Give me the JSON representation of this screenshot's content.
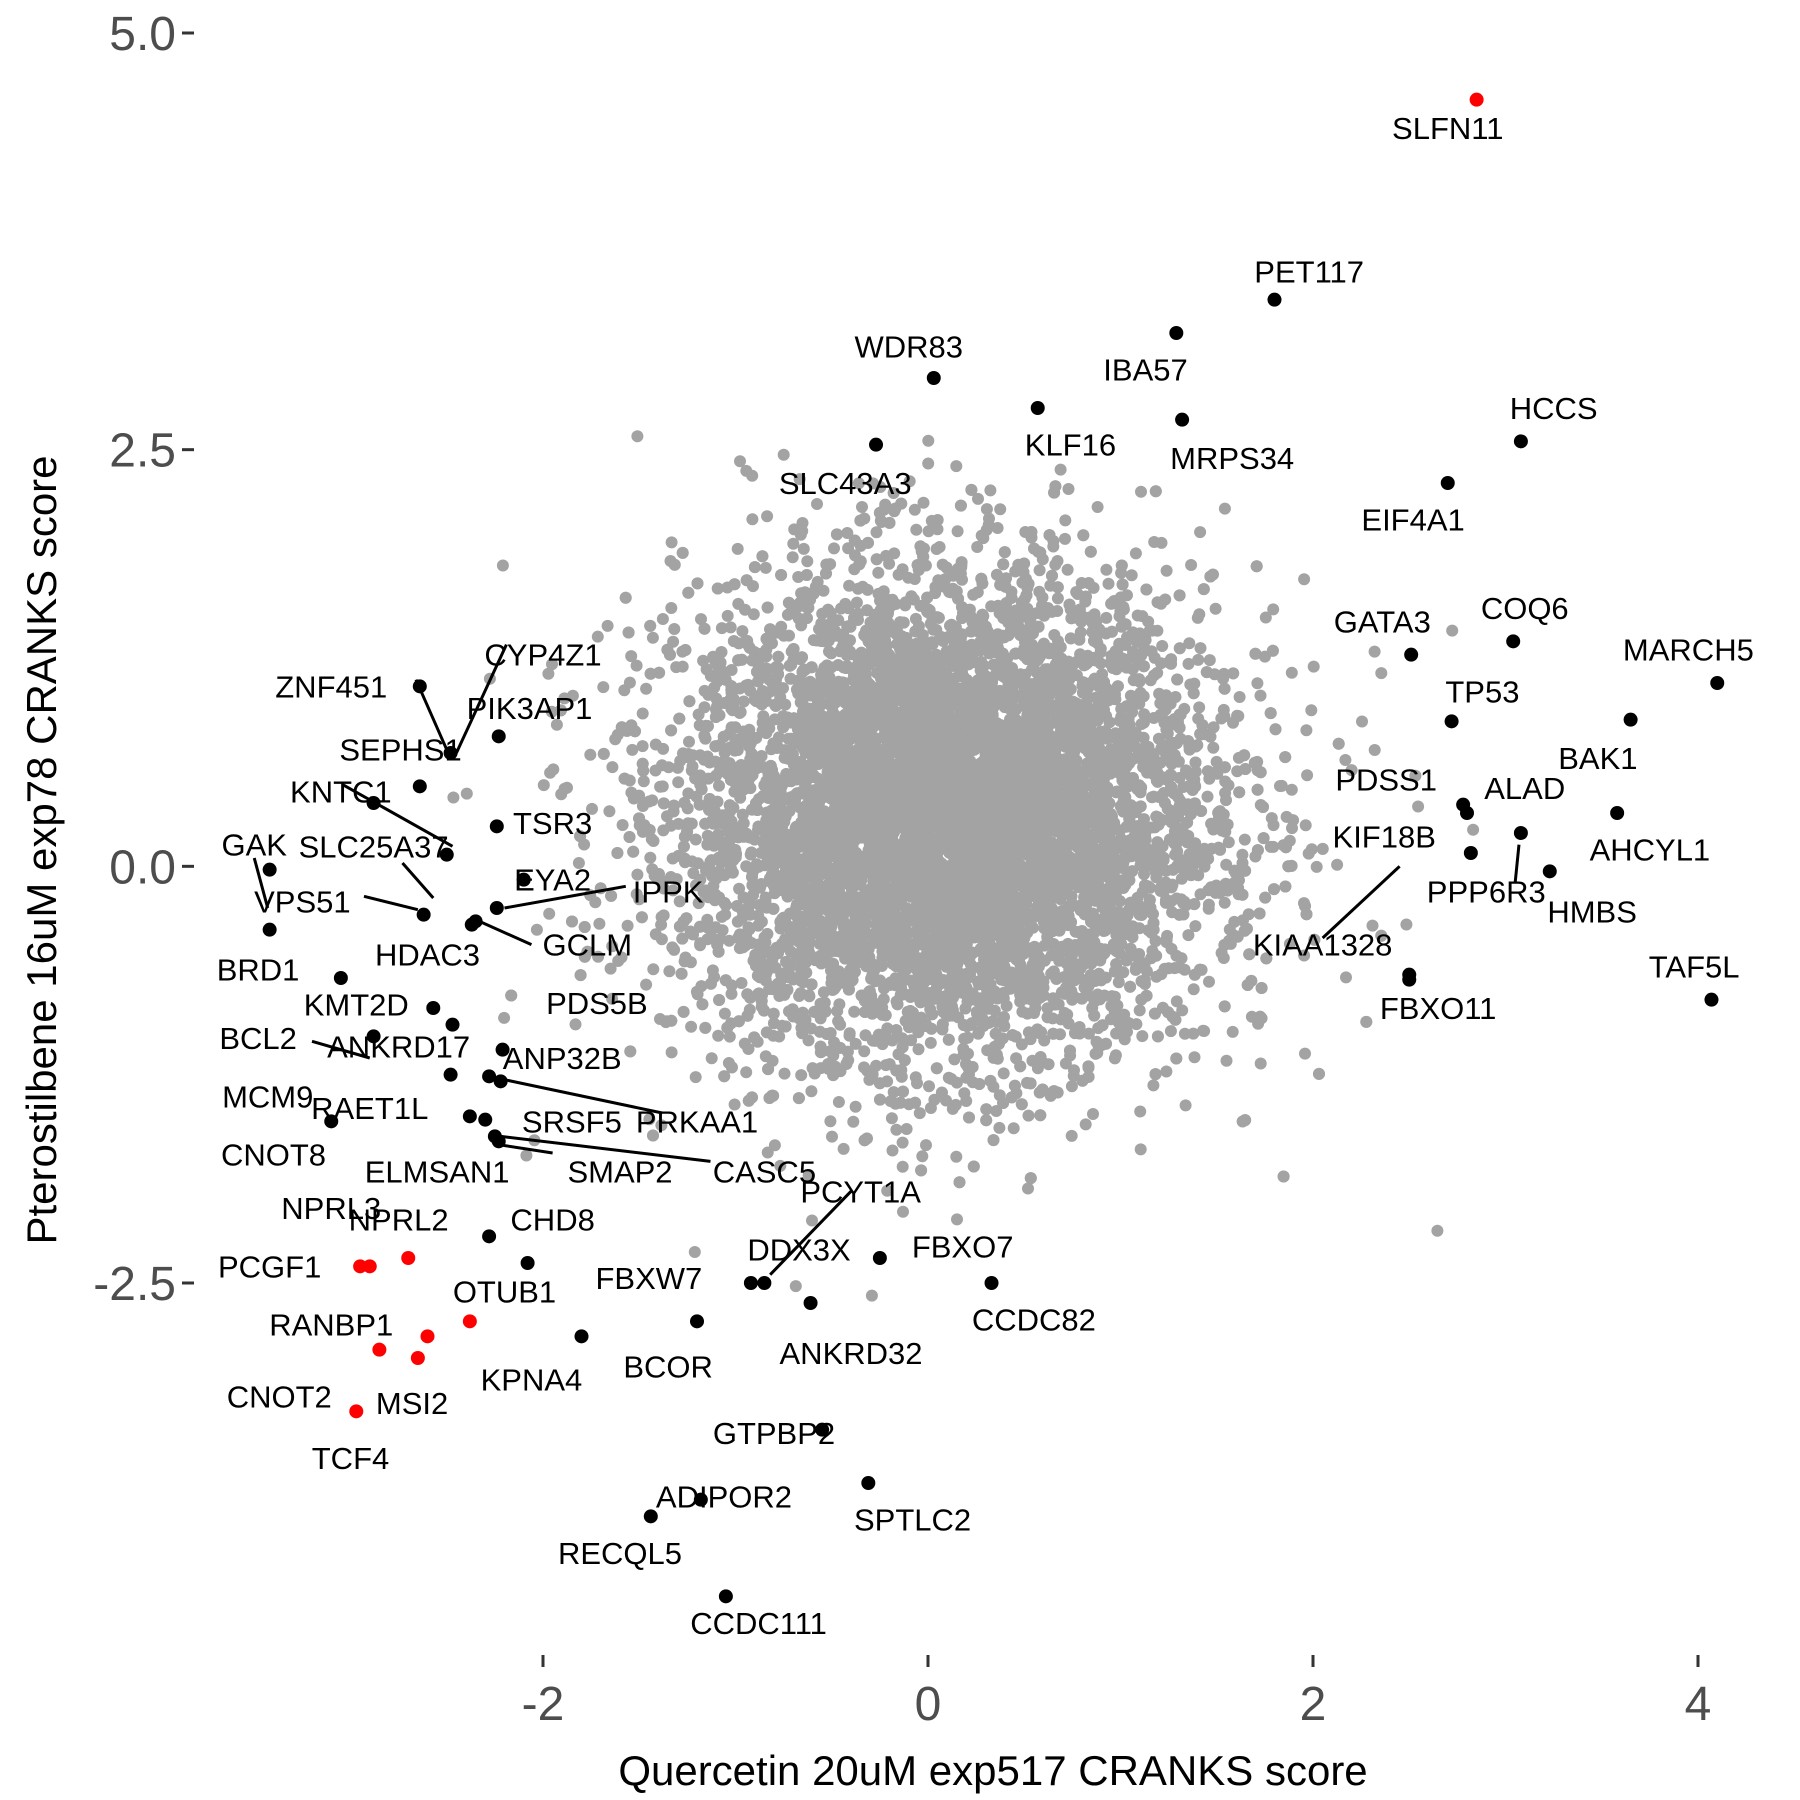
{
  "chart_data": {
    "type": "scatter",
    "xlabel": "Quercetin 20uM exp517 CRANKS score",
    "ylabel": "Pterostilbene 16uM exp78 CRANKS score",
    "xlim": [
      -3.6,
      4.3
    ],
    "ylim": [
      -4.55,
      5.25
    ],
    "xticks": [
      {
        "value": -2,
        "label": "-2"
      },
      {
        "value": 0,
        "label": "0"
      },
      {
        "value": 2,
        "label": "2"
      },
      {
        "value": 4,
        "label": "4"
      }
    ],
    "yticks": [
      {
        "value": 5.0,
        "label": "5.0"
      },
      {
        "value": 2.5,
        "label": "2.5"
      },
      {
        "value": 0.0,
        "label": "0.0"
      },
      {
        "value": -2.5,
        "label": "-2.5"
      }
    ],
    "grid": false,
    "legend": "none",
    "colors": {
      "background_points": "#a3a3a3",
      "highlight": "#000000",
      "top_hits": "#ff0000"
    },
    "background_cloud": {
      "approx_center": [
        0.1,
        0.3
      ],
      "approx_sd": [
        0.65,
        0.65
      ],
      "note_color": "gray"
    },
    "labeled_points": [
      {
        "gene": "SLFN11",
        "x": 2.85,
        "y": 4.6,
        "color": "red",
        "lx": 2.7,
        "ly": 4.43
      },
      {
        "gene": "PET117",
        "x": 1.8,
        "y": 3.4,
        "color": "black",
        "lx": 1.98,
        "ly": 3.57
      },
      {
        "gene": "WDR83",
        "x": 0.03,
        "y": 2.93,
        "color": "black",
        "lx": -0.1,
        "ly": 3.12
      },
      {
        "gene": "IBA57",
        "x": 1.29,
        "y": 3.2,
        "color": "black",
        "lx": 1.13,
        "ly": 2.98
      },
      {
        "gene": "KLF16",
        "x": 0.57,
        "y": 2.75,
        "color": "black",
        "lx": 0.74,
        "ly": 2.53
      },
      {
        "gene": "MRPS34",
        "x": 1.32,
        "y": 2.68,
        "color": "black",
        "lx": 1.58,
        "ly": 2.45
      },
      {
        "gene": "SLC43A3",
        "x": -0.27,
        "y": 2.53,
        "color": "black",
        "lx": -0.43,
        "ly": 2.3
      },
      {
        "gene": "HCCS",
        "x": 3.08,
        "y": 2.55,
        "color": "black",
        "lx": 3.25,
        "ly": 2.75
      },
      {
        "gene": "EIF4A1",
        "x": 2.7,
        "y": 2.3,
        "color": "black",
        "lx": 2.52,
        "ly": 2.08
      },
      {
        "gene": "GATA3",
        "x": 2.51,
        "y": 1.27,
        "color": "black",
        "lx": 2.36,
        "ly": 1.47
      },
      {
        "gene": "COQ6",
        "x": 3.04,
        "y": 1.35,
        "color": "black",
        "lx": 3.1,
        "ly": 1.55
      },
      {
        "gene": "MARCH5",
        "x": 4.1,
        "y": 1.1,
        "color": "black",
        "lx": 3.95,
        "ly": 1.3
      },
      {
        "gene": "TP53",
        "x": 2.72,
        "y": 0.87,
        "color": "black",
        "lx": 2.88,
        "ly": 1.05
      },
      {
        "gene": "BAK1",
        "x": 3.65,
        "y": 0.88,
        "color": "black",
        "lx": 3.48,
        "ly": 0.65
      },
      {
        "gene": "PDSS1",
        "x": 2.78,
        "y": 0.37,
        "color": "black",
        "lx": 2.38,
        "ly": 0.52
      },
      {
        "gene": "ALAD",
        "x": 2.8,
        "y": 0.32,
        "color": "black",
        "lx": 3.1,
        "ly": 0.47
      },
      {
        "gene": "KIF18B",
        "x": 2.82,
        "y": 0.08,
        "color": "black",
        "lx": 2.37,
        "ly": 0.18
      },
      {
        "gene": "AHCYL1",
        "x": 3.58,
        "y": 0.32,
        "color": "black",
        "lx": 3.75,
        "ly": 0.1
      },
      {
        "gene": "PPP6R3",
        "x": 3.08,
        "y": 0.2,
        "color": "black",
        "lx": 2.9,
        "ly": -0.15,
        "line": [
          3.07,
          0.13,
          3.05,
          -0.1
        ]
      },
      {
        "gene": "HMBS",
        "x": 3.23,
        "y": -0.03,
        "color": "black",
        "lx": 3.45,
        "ly": -0.27
      },
      {
        "gene": "KIAA1328",
        "x": 2.5,
        "y": -0.68,
        "color": "black",
        "lx": 2.05,
        "ly": -0.47,
        "line": [
          2.45,
          0.0,
          2.05,
          -0.43
        ]
      },
      {
        "gene": "FBXO11",
        "x": 2.5,
        "y": -0.65,
        "color": "black",
        "lx": 2.65,
        "ly": -0.85
      },
      {
        "gene": "TAF5L",
        "x": 4.07,
        "y": -0.8,
        "color": "black",
        "lx": 3.98,
        "ly": -0.6
      },
      {
        "gene": "CYP4Z1",
        "x": -2.48,
        "y": 0.68,
        "color": "black",
        "lx": -2.0,
        "ly": 1.27,
        "line": [
          -2.45,
          0.68,
          -2.19,
          1.33
        ]
      },
      {
        "gene": "ZNF451",
        "x": -2.64,
        "y": 1.08,
        "color": "black",
        "lx": -3.1,
        "ly": 1.08,
        "line": [
          -2.66,
          1.12,
          -2.5,
          0.7
        ]
      },
      {
        "gene": "PIK3AP1",
        "x": -2.23,
        "y": 0.78,
        "color": "black",
        "lx": -2.07,
        "ly": 0.95
      },
      {
        "gene": "SEPHS1",
        "x": -2.64,
        "y": 0.48,
        "color": "black",
        "lx": -2.74,
        "ly": 0.7
      },
      {
        "gene": "KNTC1",
        "x": -2.88,
        "y": 0.38,
        "color": "black",
        "lx": -3.05,
        "ly": 0.45,
        "line": [
          -3.04,
          0.49,
          -2.47,
          0.12
        ]
      },
      {
        "gene": "TSR3",
        "x": -2.24,
        "y": 0.24,
        "color": "black",
        "lx": -1.95,
        "ly": 0.26
      },
      {
        "gene": "GAK",
        "x": -3.42,
        "y": -0.02,
        "color": "black",
        "lx": -3.5,
        "ly": 0.13,
        "line": [
          -3.5,
          0.05,
          -3.43,
          -0.25
        ]
      },
      {
        "gene": "SLC25A37",
        "x": -2.5,
        "y": 0.07,
        "color": "black",
        "lx": -2.88,
        "ly": 0.12,
        "line": [
          -2.73,
          0.02,
          -2.57,
          -0.19
        ]
      },
      {
        "gene": "EYA2",
        "x": -2.1,
        "y": -0.08,
        "color": "black",
        "lx": -1.95,
        "ly": -0.08
      },
      {
        "gene": "IPPK",
        "x": -2.24,
        "y": -0.25,
        "color": "black",
        "lx": -1.35,
        "ly": -0.15,
        "line": [
          -2.2,
          -0.25,
          -1.57,
          -0.12
        ]
      },
      {
        "gene": "VPS51",
        "x": -2.62,
        "y": -0.29,
        "color": "black",
        "lx": -3.25,
        "ly": -0.21,
        "line": [
          -2.93,
          -0.18,
          -2.65,
          -0.26
        ]
      },
      {
        "gene": "HDAC3",
        "x": -2.35,
        "y": -0.33,
        "color": "black",
        "lx": -2.6,
        "ly": -0.53
      },
      {
        "gene": "GCLM",
        "x": -2.37,
        "y": -0.35,
        "color": "black",
        "lx": -1.77,
        "ly": -0.47,
        "line": [
          -2.33,
          -0.33,
          -2.06,
          -0.47
        ]
      },
      {
        "gene": "BRD1",
        "x": -3.42,
        "y": -0.38,
        "color": "black",
        "lx": -3.48,
        "ly": -0.62
      },
      {
        "gene": "KMT2D",
        "x": -3.05,
        "y": -0.67,
        "color": "black",
        "lx": -2.97,
        "ly": -0.83
      },
      {
        "gene": "PDS5B",
        "x": -2.57,
        "y": -0.85,
        "color": "black",
        "lx": -1.72,
        "ly": -0.82
      },
      {
        "gene": "BCL2",
        "x": -2.88,
        "y": -1.02,
        "color": "black",
        "lx": -3.48,
        "ly": -1.03,
        "line": [
          -3.2,
          -1.05,
          -2.9,
          -1.15
        ]
      },
      {
        "gene": "ANKRD17",
        "x": -2.47,
        "y": -0.95,
        "color": "black",
        "lx": -2.75,
        "ly": -1.08
      },
      {
        "gene": "ANP32B",
        "x": -2.21,
        "y": -1.1,
        "color": "black",
        "lx": -1.9,
        "ly": -1.15
      },
      {
        "gene": "MCM9",
        "x": -2.28,
        "y": -1.26,
        "color": "black",
        "lx": -3.43,
        "ly": -1.38
      },
      {
        "gene": "RAET1L",
        "x": -2.48,
        "y": -1.25,
        "color": "black",
        "lx": -2.9,
        "ly": -1.45
      },
      {
        "gene": "PRKAA1",
        "x": -2.22,
        "y": -1.29,
        "color": "black",
        "lx": -1.2,
        "ly": -1.53,
        "line": [
          -2.2,
          -1.28,
          -1.38,
          -1.48
        ]
      },
      {
        "gene": "SRSF5",
        "x": -2.38,
        "y": -1.5,
        "color": "black",
        "lx": -1.85,
        "ly": -1.53
      },
      {
        "gene": "CNOT8",
        "x": -3.1,
        "y": -1.53,
        "color": "black",
        "lx": -3.4,
        "ly": -1.73
      },
      {
        "gene": "ELMSAN1",
        "x": -2.3,
        "y": -1.52,
        "color": "black",
        "lx": -2.55,
        "ly": -1.83,
        "line": [
          -2.23,
          -1.67,
          -1.95,
          -1.72
        ]
      },
      {
        "gene": "SMAP2",
        "x": -2.23,
        "y": -1.65,
        "color": "black",
        "lx": -1.6,
        "ly": -1.83
      },
      {
        "gene": "CASC5",
        "x": -2.25,
        "y": -1.62,
        "color": "black",
        "lx": -0.85,
        "ly": -1.83,
        "line": [
          -2.22,
          -1.62,
          -1.13,
          -1.77
        ]
      },
      {
        "gene": "NPRL3",
        "x": -2.9,
        "y": -2.4,
        "color": "red",
        "lx": -3.1,
        "ly": -2.05
      },
      {
        "gene": "NPRL2",
        "x": -2.7,
        "y": -2.35,
        "color": "red",
        "lx": -2.75,
        "ly": -2.12
      },
      {
        "gene": "CHD8",
        "x": -2.28,
        "y": -2.22,
        "color": "black",
        "lx": -1.95,
        "ly": -2.12
      },
      {
        "gene": "PCYT1A",
        "x": -0.85,
        "y": -2.5,
        "color": "black",
        "lx": -0.35,
        "ly": -1.95,
        "line": [
          -0.82,
          -2.45,
          -0.4,
          -1.95
        ]
      },
      {
        "gene": "DDX3X",
        "x": -0.92,
        "y": -2.5,
        "color": "black",
        "lx": -0.67,
        "ly": -2.3
      },
      {
        "gene": "FBXO7",
        "x": -0.25,
        "y": -2.35,
        "color": "black",
        "lx": 0.18,
        "ly": -2.28
      },
      {
        "gene": "PCGF1",
        "x": -2.95,
        "y": -2.4,
        "color": "red",
        "lx": -3.42,
        "ly": -2.4
      },
      {
        "gene": "OTUB1",
        "x": -2.08,
        "y": -2.38,
        "color": "black",
        "lx": -2.2,
        "ly": -2.55
      },
      {
        "gene": "FBXW7",
        "x": -1.8,
        "y": -2.82,
        "color": "black",
        "lx": -1.45,
        "ly": -2.47
      },
      {
        "gene": "CCDC82",
        "x": 0.33,
        "y": -2.5,
        "color": "black",
        "lx": 0.55,
        "ly": -2.72
      },
      {
        "gene": "RANBP1",
        "x": -2.38,
        "y": -2.73,
        "color": "red",
        "lx": -3.1,
        "ly": -2.75
      },
      {
        "gene": "ANKRD32",
        "x": -0.61,
        "y": -2.62,
        "color": "black",
        "lx": -0.4,
        "ly": -2.92
      },
      {
        "gene": "BCOR",
        "x": -1.2,
        "y": -2.73,
        "color": "black",
        "lx": -1.35,
        "ly": -3.0
      },
      {
        "gene": "KPNA4",
        "x": -2.6,
        "y": -2.82,
        "color": "red",
        "lx": -2.06,
        "ly": -3.08
      },
      {
        "gene": "CNOT2",
        "x": -2.85,
        "y": -2.9,
        "color": "red",
        "lx": -3.37,
        "ly": -3.18
      },
      {
        "gene": "MSI2",
        "x": -2.65,
        "y": -2.95,
        "color": "red",
        "lx": -2.68,
        "ly": -3.22
      },
      {
        "gene": "GTPBP2",
        "x": -0.55,
        "y": -3.38,
        "color": "black",
        "lx": -0.8,
        "ly": -3.4
      },
      {
        "gene": "TCF4",
        "x": -2.97,
        "y": -3.27,
        "color": "red",
        "lx": -3.0,
        "ly": -3.55
      },
      {
        "gene": "ADIPOR2",
        "x": -1.18,
        "y": -3.8,
        "color": "black",
        "lx": -1.06,
        "ly": -3.78
      },
      {
        "gene": "SPTLC2",
        "x": -0.31,
        "y": -3.7,
        "color": "black",
        "lx": -0.08,
        "ly": -3.92
      },
      {
        "gene": "RECQL5",
        "x": -1.44,
        "y": -3.9,
        "color": "black",
        "lx": -1.6,
        "ly": -4.12
      },
      {
        "gene": "CCDC111",
        "x": -1.05,
        "y": -4.38,
        "color": "black",
        "lx": -0.88,
        "ly": -4.54
      }
    ]
  }
}
